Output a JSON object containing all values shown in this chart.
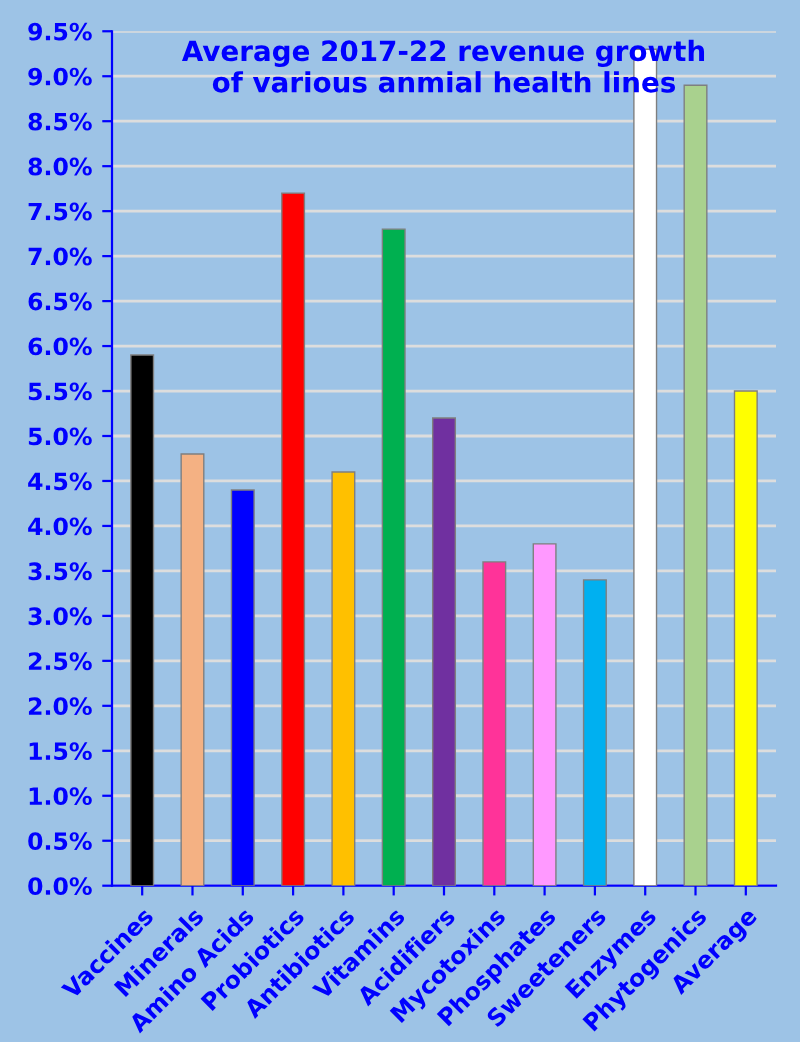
{
  "chart_data": {
    "type": "bar",
    "title": "Average 2017-22 revenue growth\nof various anmial health lines",
    "categories": [
      "Vaccines",
      "Minerals",
      "Amino Acids",
      "Probiotics",
      "Antibiotics",
      "Vitamins",
      "Acidifiers",
      "Mycotoxins",
      "Phosphates",
      "Sweeteners",
      "Enzymes",
      "Phytogenics",
      "Average"
    ],
    "values": [
      5.9,
      4.8,
      4.4,
      7.7,
      4.6,
      7.3,
      5.2,
      3.6,
      3.8,
      3.4,
      9.3,
      8.9,
      5.5
    ],
    "colors": [
      "#000000",
      "#f4b183",
      "#0000ff",
      "#ff0000",
      "#ffc000",
      "#00b050",
      "#7030a0",
      "#ff3399",
      "#ff99ff",
      "#00b0f0",
      "#ffffff",
      "#a9d18e",
      "#ffff00"
    ],
    "ylim": [
      0,
      9.5
    ],
    "yticks": [
      {
        "value": 0,
        "label": "0.0%"
      },
      {
        "value": 0.5,
        "label": "0.5%"
      },
      {
        "value": 1,
        "label": "1.0%"
      },
      {
        "value": 1.5,
        "label": "1.5%"
      },
      {
        "value": 2,
        "label": "2.0%"
      },
      {
        "value": 2.5,
        "label": "2.5%"
      },
      {
        "value": 3,
        "label": "3.0%"
      },
      {
        "value": 3.5,
        "label": "3.5%"
      },
      {
        "value": 4,
        "label": "4.0%"
      },
      {
        "value": 4.5,
        "label": "4.5%"
      },
      {
        "value": 5,
        "label": "5.0%"
      },
      {
        "value": 5.5,
        "label": "5.5%"
      },
      {
        "value": 6,
        "label": "6.0%"
      },
      {
        "value": 6.5,
        "label": "6.5%"
      },
      {
        "value": 7,
        "label": "7.0%"
      },
      {
        "value": 7.5,
        "label": "7.5%"
      },
      {
        "value": 8,
        "label": "8.0%"
      },
      {
        "value": 8.5,
        "label": "8.5%"
      },
      {
        "value": 9,
        "label": "9.0%"
      },
      {
        "value": 9.5,
        "label": "9.5%"
      }
    ],
    "grid": "y"
  }
}
